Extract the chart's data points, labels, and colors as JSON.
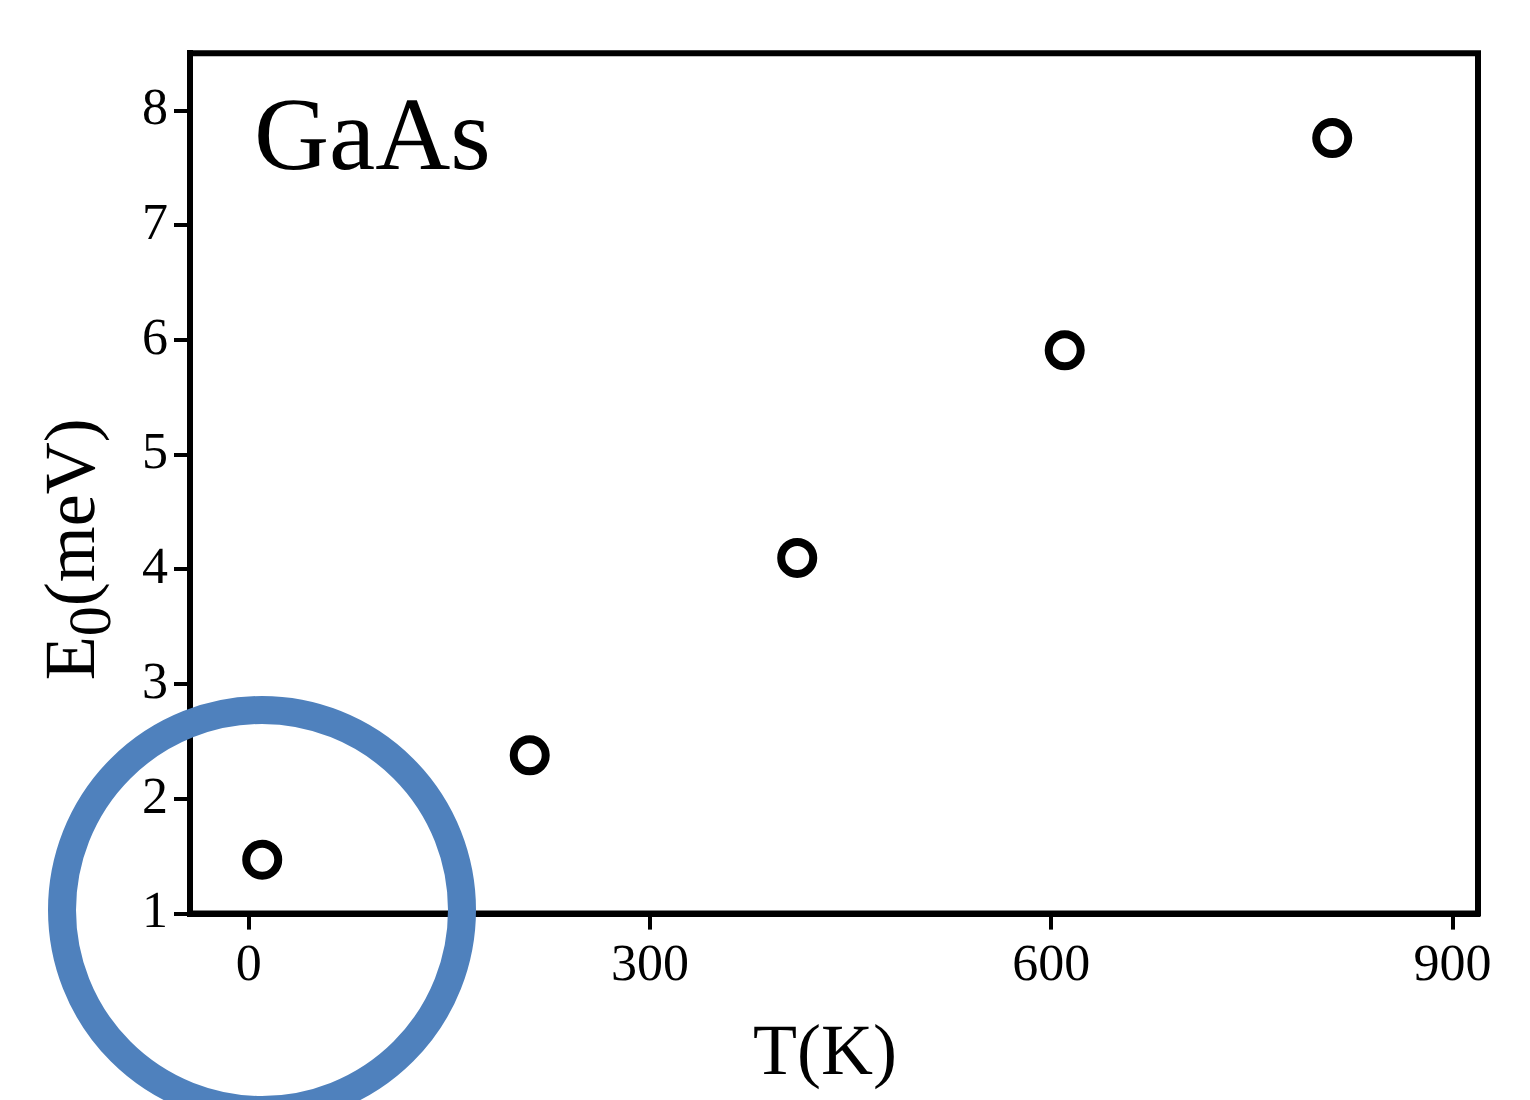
{
  "chart_data": {
    "type": "scatter",
    "xlabel": "T(K)",
    "ylabel": "E$_{0}$(meV)",
    "annotations": [
      "GaAs"
    ],
    "x": [
      10,
      210,
      410,
      610,
      810
    ],
    "series": [
      {
        "color": "#000000",
        "values": [
          1.47,
          2.38,
          4.1,
          5.91,
          7.76
        ]
      }
    ],
    "xlim": [
      -44,
      919
    ],
    "xticks": [
      0,
      300,
      600,
      900
    ],
    "ylim": [
      1,
      8.5
    ],
    "yticks": [
      1,
      2,
      3,
      4,
      5,
      6,
      7,
      8
    ],
    "marker": "circle",
    "grid": false,
    "legend": false
  }
}
